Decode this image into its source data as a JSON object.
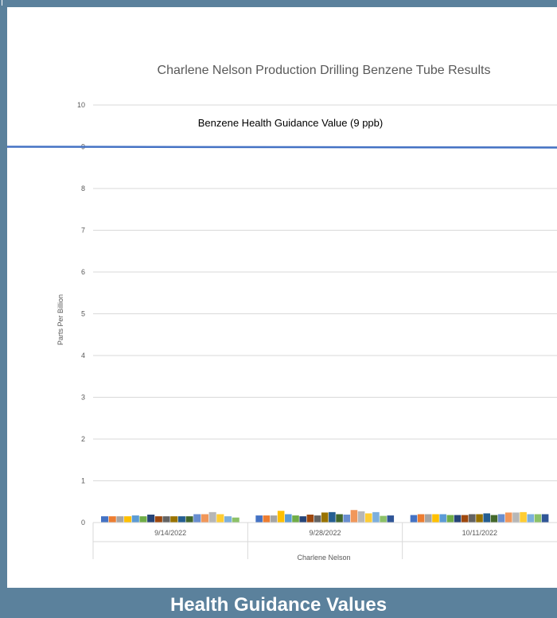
{
  "footer": {
    "title": "Health Guidance Values"
  },
  "colors": {
    "frame": "#5b819c",
    "guidance_line": "#4472c4",
    "grid": "#d9d9d9",
    "series_palette": [
      "#4472c4",
      "#ed7d31",
      "#a5a5a5",
      "#ffc000",
      "#5b9bd5",
      "#70ad47",
      "#264478",
      "#9e480e",
      "#636363",
      "#997300",
      "#255e91",
      "#43682b",
      "#698ed0",
      "#f1975a",
      "#b7b7b7",
      "#ffcd33",
      "#7cafdd",
      "#8cc168",
      "#2f5597"
    ]
  },
  "chart_data": {
    "type": "bar",
    "title": "Charlene Nelson Production Drilling Benzene Tube Results",
    "xlabel": "Charlene Nelson",
    "ylabel": "Parts Per Billion",
    "ylim": [
      0,
      10
    ],
    "yticks": [
      "0",
      "1",
      "2",
      "3",
      "4",
      "5",
      "6",
      "7",
      "8",
      "9",
      "10"
    ],
    "grid": true,
    "categories": [
      "9/14/2022",
      "9/28/2022",
      "10/11/2022"
    ],
    "group_values": [
      [
        0.15,
        0.15,
        0.15,
        0.15,
        0.17,
        0.15,
        0.19,
        0.15,
        0.15,
        0.15,
        0.15,
        0.15,
        0.2,
        0.2,
        0.25,
        0.2,
        0.15,
        0.12
      ],
      [
        0.17,
        0.17,
        0.17,
        0.28,
        0.2,
        0.17,
        0.15,
        0.19,
        0.17,
        0.24,
        0.25,
        0.2,
        0.19,
        0.3,
        0.27,
        0.22,
        0.25,
        0.16,
        0.17
      ],
      [
        0.18,
        0.2,
        0.2,
        0.2,
        0.2,
        0.18,
        0.18,
        0.18,
        0.2,
        0.2,
        0.22,
        0.18,
        0.2,
        0.24,
        0.24,
        0.25,
        0.2,
        0.2,
        0.2
      ]
    ],
    "reference_line": {
      "value": 9,
      "label": "Benzene Health Guidance Value (9 ppb)"
    }
  }
}
